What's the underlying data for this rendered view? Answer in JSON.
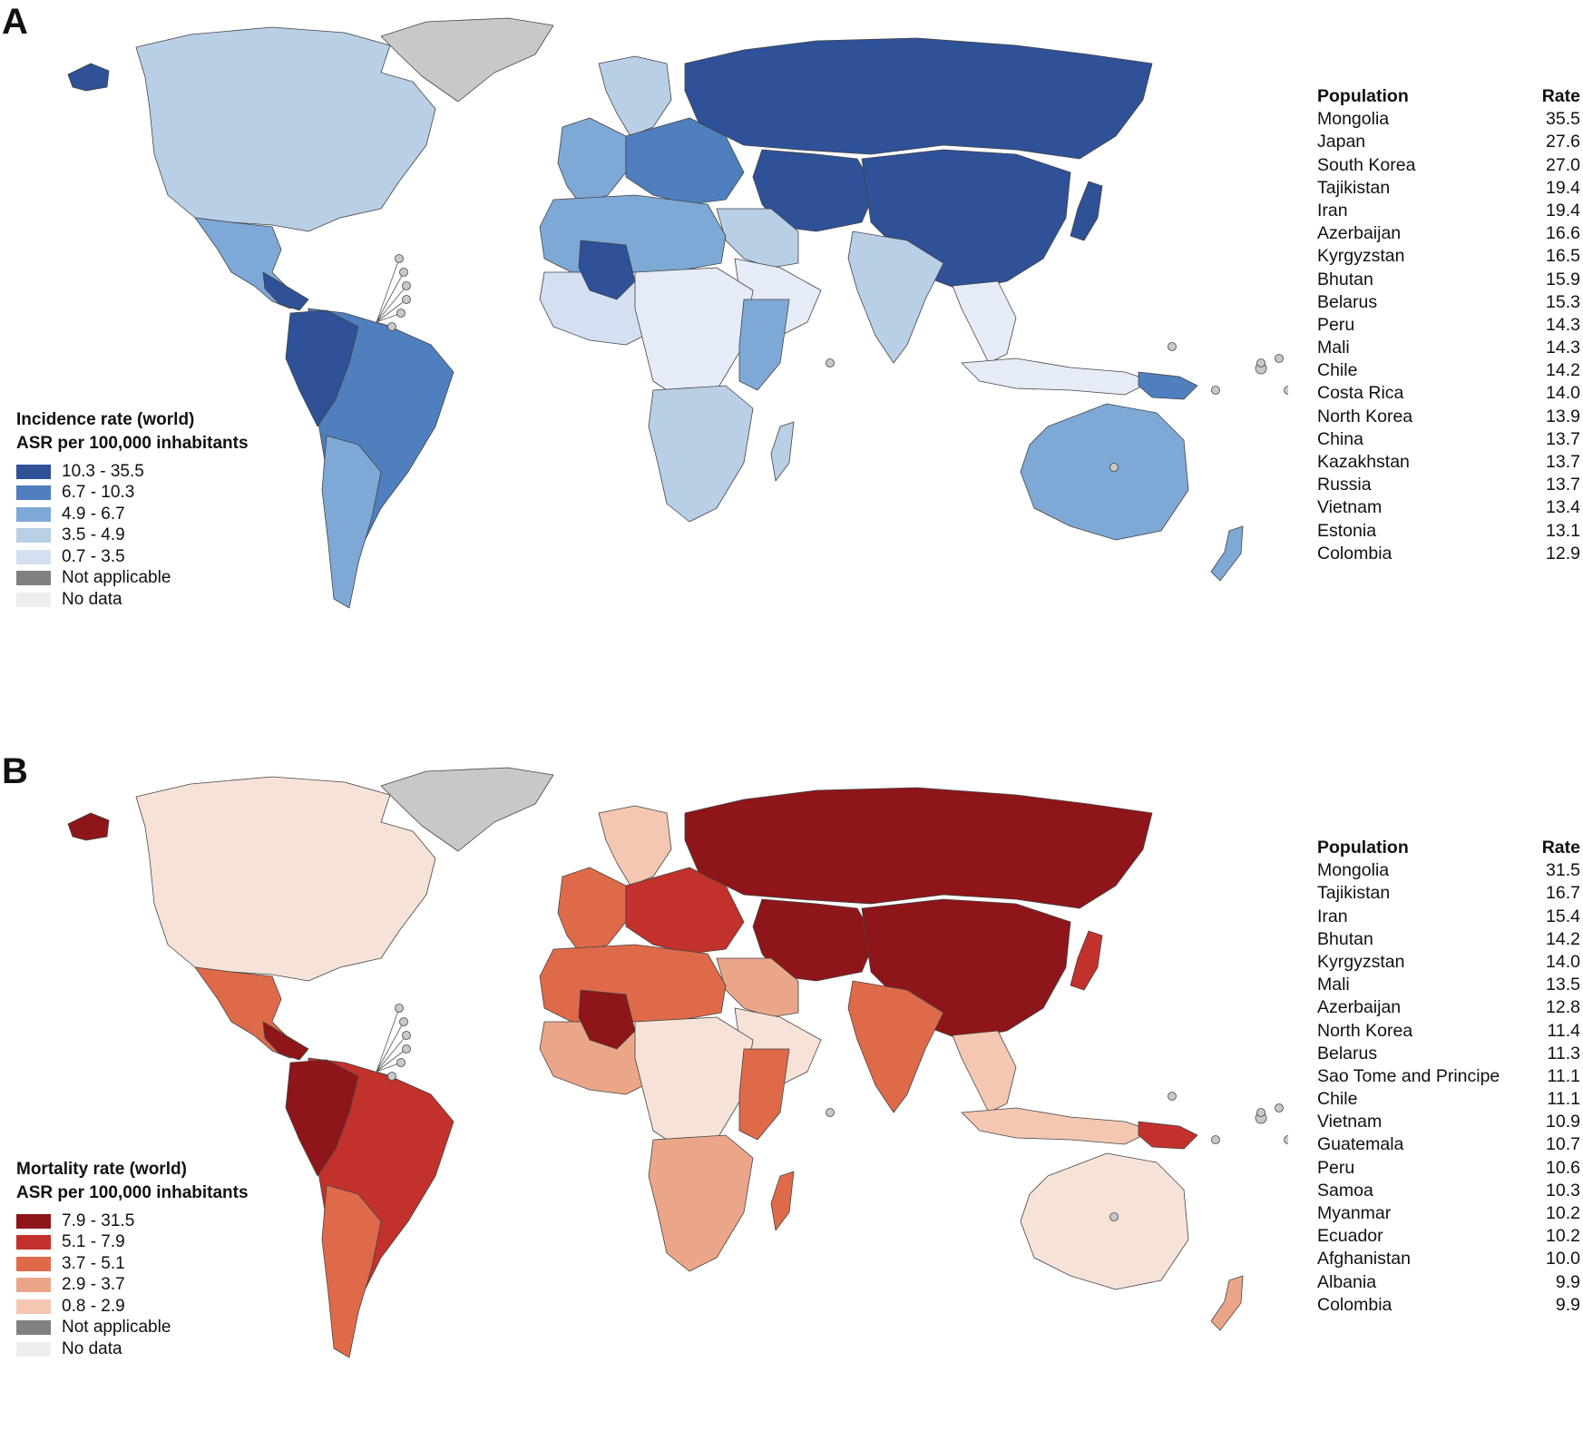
{
  "panels": [
    {
      "letter": "A",
      "legend": {
        "title": "Incidence rate (world)",
        "subtitle": "ASR per 100,000 inhabitants",
        "items": [
          {
            "label": "10.3 - 35.5",
            "color": "#2e5198"
          },
          {
            "label": "6.7 - 10.3",
            "color": "#4f7fbe"
          },
          {
            "label": "4.9 - 6.7",
            "color": "#7ea8d6"
          },
          {
            "label": "3.5 - 4.9",
            "color": "#b8cfe6"
          },
          {
            "label": "0.7 - 3.5",
            "color": "#d4e0f2"
          },
          {
            "label": "Not applicable",
            "color": "#808080"
          },
          {
            "label": "No data",
            "color": "#eeeeee"
          }
        ]
      },
      "table": {
        "headers": [
          "Population",
          "Rate"
        ],
        "rows": [
          [
            "Mongolia",
            "35.5"
          ],
          [
            "Japan",
            "27.6"
          ],
          [
            "South Korea",
            "27.0"
          ],
          [
            "Tajikistan",
            "19.4"
          ],
          [
            "Iran",
            "19.4"
          ],
          [
            "Azerbaijan",
            "16.6"
          ],
          [
            "Kyrgyzstan",
            "16.5"
          ],
          [
            "Bhutan",
            "15.9"
          ],
          [
            "Belarus",
            "15.3"
          ],
          [
            "Peru",
            "14.3"
          ],
          [
            "Mali",
            "14.3"
          ],
          [
            "Chile",
            "14.2"
          ],
          [
            "Costa Rica",
            "14.0"
          ],
          [
            "North Korea",
            "13.9"
          ],
          [
            "China",
            "13.7"
          ],
          [
            "Kazakhstan",
            "13.7"
          ],
          [
            "Russia",
            "13.7"
          ],
          [
            "Vietnam",
            "13.4"
          ],
          [
            "Estonia",
            "13.1"
          ],
          [
            "Colombia",
            "12.9"
          ]
        ]
      },
      "regions": {
        "north_america": "#b8cfe6",
        "greenland": "#c8c8c8",
        "alaska": "#2e5198",
        "central_america": "#7ea8d6",
        "central_america_dark": "#2e5198",
        "south_america": "#4f7fbe",
        "south_america_nw": "#2e5198",
        "south_america_s": "#7ea8d6",
        "europe_north": "#b8cfe6",
        "europe_west": "#7ea8d6",
        "europe_east": "#4f7fbe",
        "russia": "#2e5198",
        "central_asia": "#2e5198",
        "china": "#2e5198",
        "japan": "#2e5198",
        "india": "#b8cfe6",
        "middle_east": "#b8cfe6",
        "arabia": "#e6ebf8",
        "north_africa": "#7ea8d6",
        "mali": "#2e5198",
        "west_africa": "#d4e0f2",
        "central_africa": "#e6ebf8",
        "east_africa": "#7ea8d6",
        "southern_africa": "#b8cfe6",
        "madagascar": "#b8cfe6",
        "se_asia": "#e6ebf8",
        "indonesia": "#e6ebf8",
        "new_guinea": "#4f7fbe",
        "australia": "#7ea8d6",
        "new_zealand": "#7ea8d6",
        "islands": "#c8c8c8"
      }
    },
    {
      "letter": "B",
      "legend": {
        "title": "Mortality rate (world)",
        "subtitle": "ASR per 100,000 inhabitants",
        "items": [
          {
            "label": "7.9 - 31.5",
            "color": "#8e1519"
          },
          {
            "label": "5.1 - 7.9",
            "color": "#c2312b"
          },
          {
            "label": "3.7 - 5.1",
            "color": "#df6a4a"
          },
          {
            "label": "2.9 - 3.7",
            "color": "#eba68a"
          },
          {
            "label": "0.8 - 2.9",
            "color": "#f4c7b2"
          },
          {
            "label": "Not applicable",
            "color": "#808080"
          },
          {
            "label": "No data",
            "color": "#eeeeee"
          }
        ]
      },
      "table": {
        "headers": [
          "Population",
          "Rate"
        ],
        "rows": [
          [
            "Mongolia",
            "31.5"
          ],
          [
            "Tajikistan",
            "16.7"
          ],
          [
            "Iran",
            "15.4"
          ],
          [
            "Bhutan",
            "14.2"
          ],
          [
            "Kyrgyzstan",
            "14.0"
          ],
          [
            "Mali",
            "13.5"
          ],
          [
            "Azerbaijan",
            "12.8"
          ],
          [
            "North Korea",
            "11.4"
          ],
          [
            "Belarus",
            "11.3"
          ],
          [
            "Sao Tome and Principe",
            "11.1"
          ],
          [
            "Chile",
            "11.1"
          ],
          [
            "Vietnam",
            "10.9"
          ],
          [
            "Guatemala",
            "10.7"
          ],
          [
            "Peru",
            "10.6"
          ],
          [
            "Samoa",
            "10.3"
          ],
          [
            "Myanmar",
            "10.2"
          ],
          [
            "Ecuador",
            "10.2"
          ],
          [
            "Afghanistan",
            "10.0"
          ],
          [
            "Albania",
            "9.9"
          ],
          [
            "Colombia",
            "9.9"
          ]
        ]
      },
      "regions": {
        "north_america": "#f7e2d8",
        "greenland": "#c8c8c8",
        "alaska": "#8e1519",
        "central_america": "#df6a4a",
        "central_america_dark": "#8e1519",
        "south_america": "#c2312b",
        "south_america_nw": "#8e1519",
        "south_america_s": "#df6a4a",
        "europe_north": "#f4c7b2",
        "europe_west": "#df6a4a",
        "europe_east": "#c2312b",
        "russia": "#8e1519",
        "central_asia": "#8e1519",
        "china": "#8e1519",
        "japan": "#c2312b",
        "india": "#df6a4a",
        "middle_east": "#eba68a",
        "arabia": "#f7e2d8",
        "north_africa": "#df6a4a",
        "mali": "#8e1519",
        "west_africa": "#eba68a",
        "central_africa": "#f7e2d8",
        "east_africa": "#df6a4a",
        "southern_africa": "#eba68a",
        "madagascar": "#df6a4a",
        "se_asia": "#f4c7b2",
        "indonesia": "#f4c7b2",
        "new_guinea": "#c2312b",
        "australia": "#f7e2d8",
        "new_zealand": "#eba68a",
        "islands": "#c8c8c8"
      }
    }
  ]
}
